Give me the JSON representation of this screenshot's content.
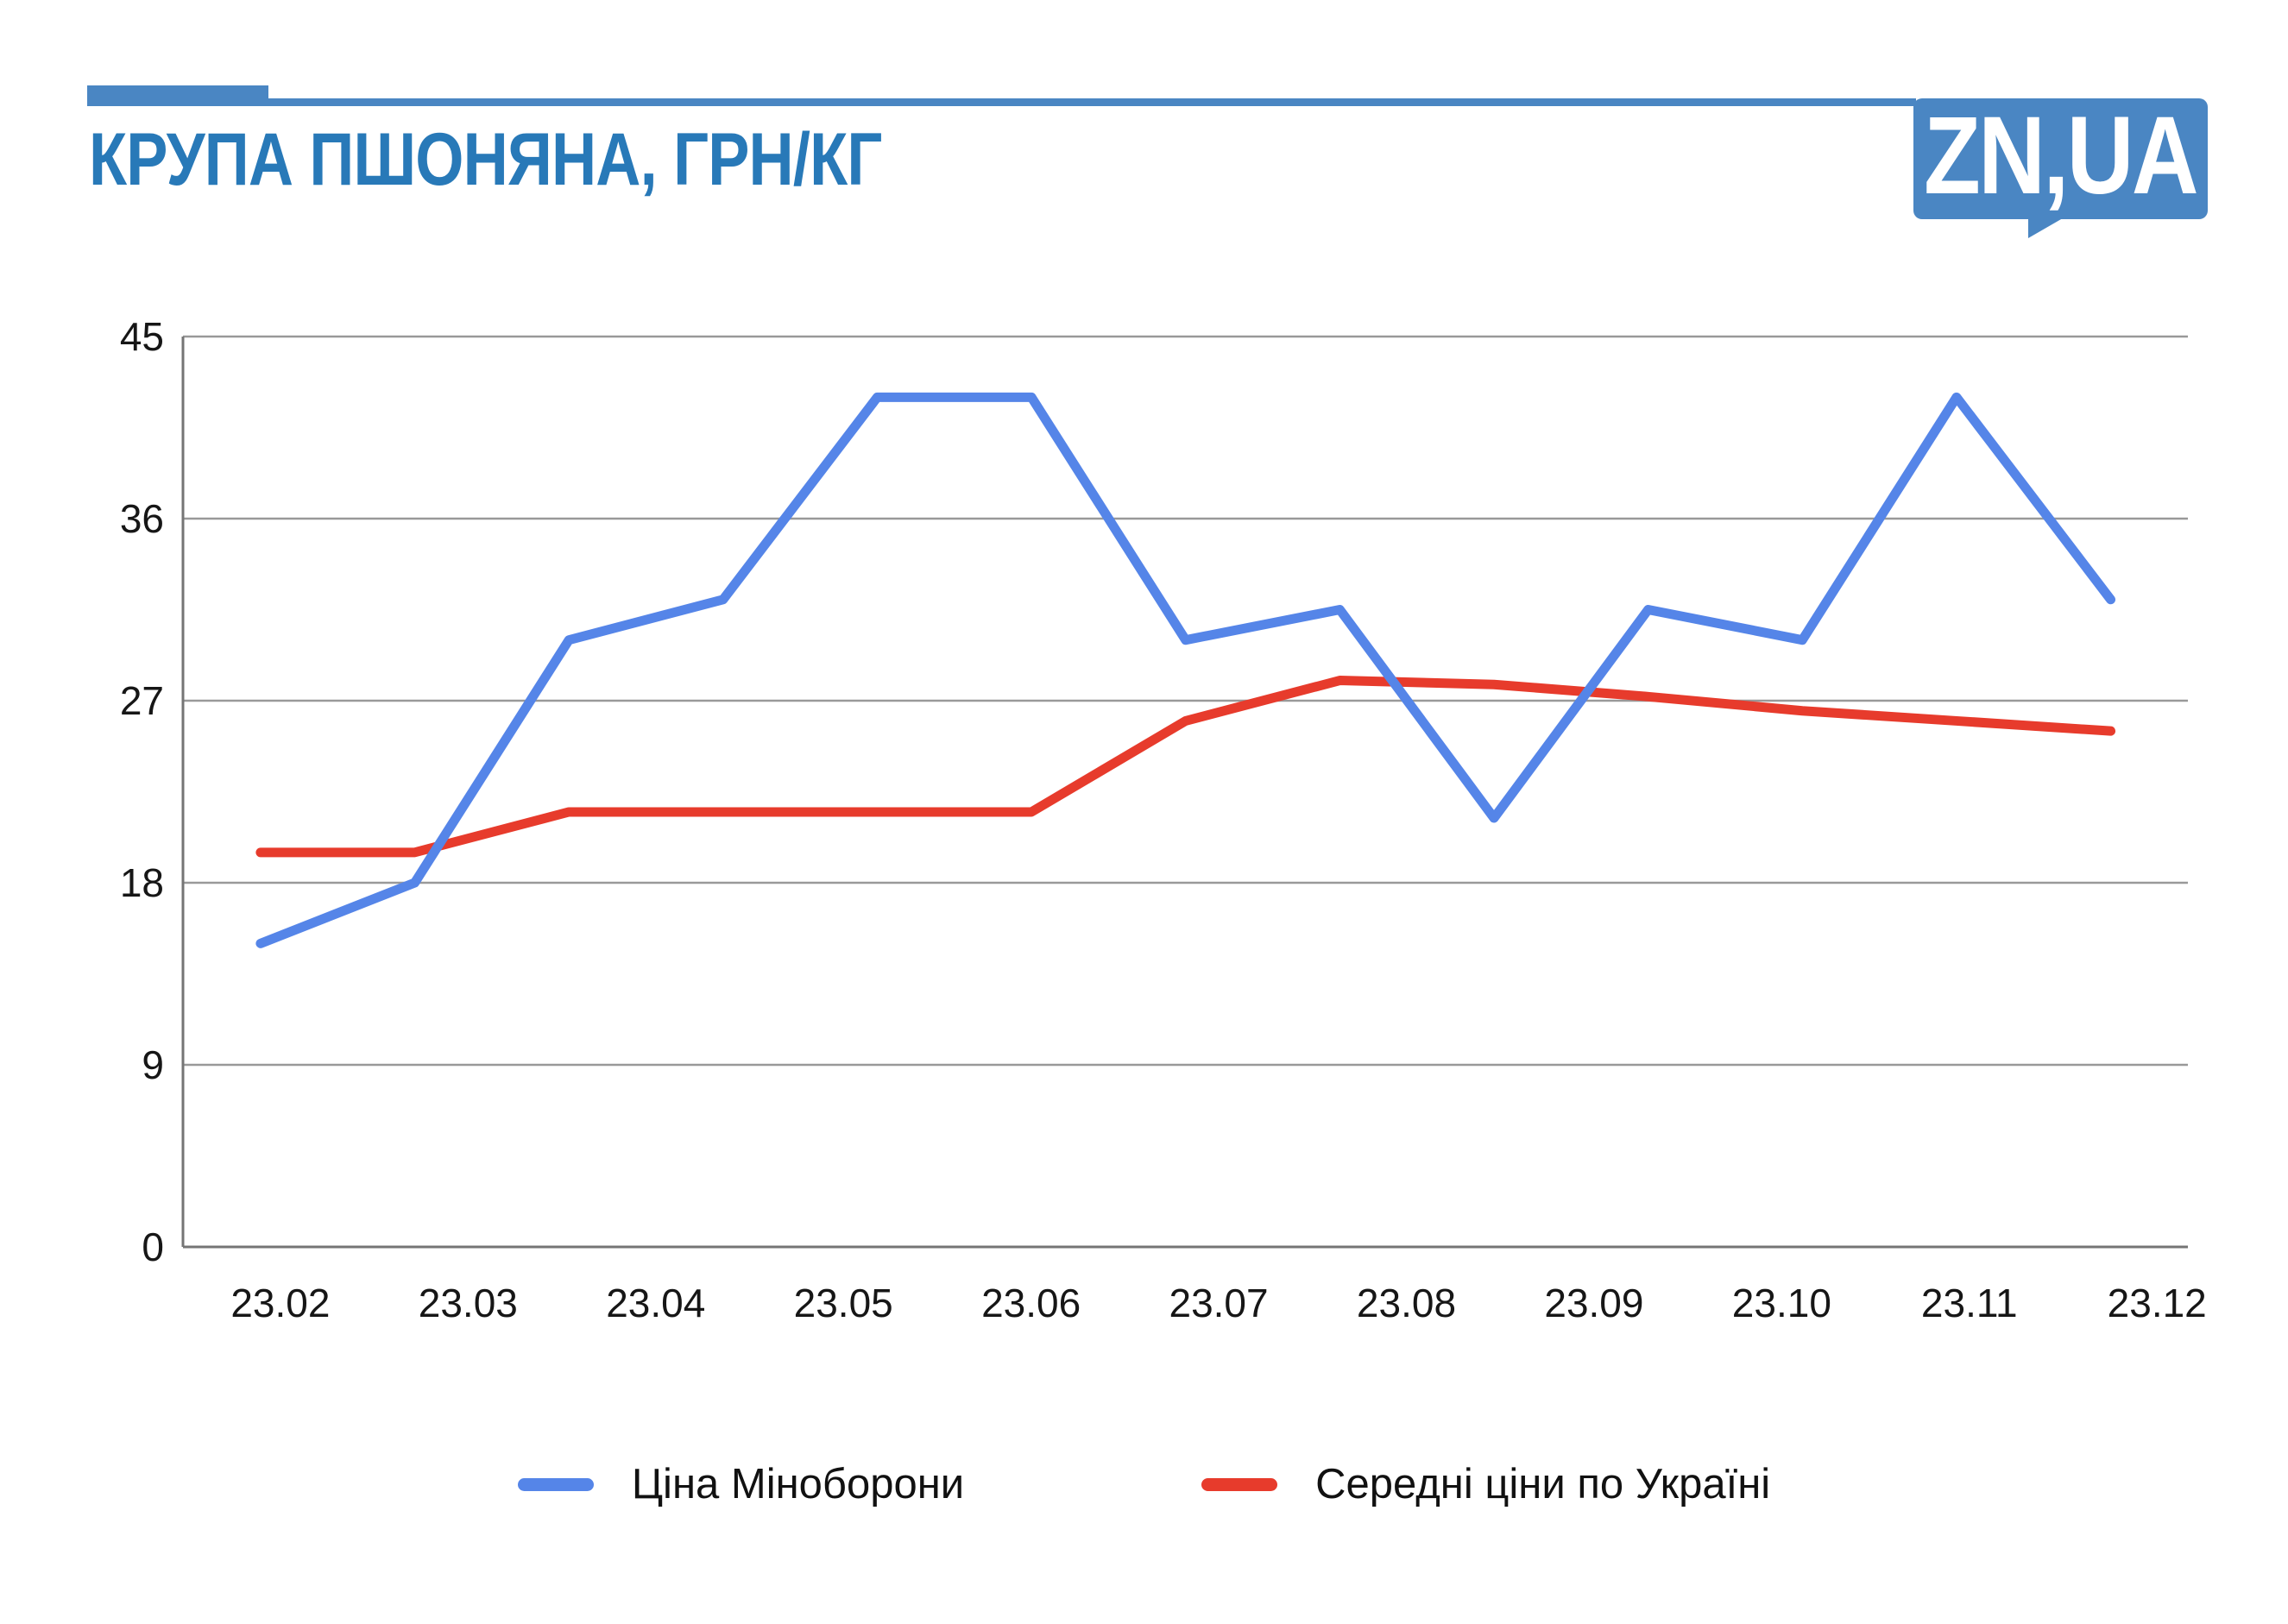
{
  "header": {
    "title": "КРУПА ПШОНЯНА, ГРН/КГ",
    "logo_text": "ZN,UA"
  },
  "colors": {
    "accent_blue": "#4a86c3",
    "title_blue": "#2879b8",
    "line_blue": "#5585e8",
    "line_red": "#e73b2c",
    "gridline": "#999999",
    "axis_line": "#757575",
    "tick_text": "#161616"
  },
  "chart_data": {
    "type": "line",
    "title": "КРУПА ПШОНЯНА, ГРН/КГ",
    "ylabel": "грн/кг",
    "ylim": [
      0,
      45
    ],
    "y_ticks": [
      0,
      9,
      18,
      27,
      36,
      45
    ],
    "x_tick_labels": [
      "23.02",
      "23.03",
      "23.04",
      "23.05",
      "23.06",
      "23.07",
      "23.08",
      "23.09",
      "23.10",
      "23.11",
      "23.12"
    ],
    "x_axis_note": "13 evenly spaced data points across the axis; axis labeled monthly from 23.02 to 23.12",
    "grid": "horizontal",
    "legend_position": "bottom",
    "series": [
      {
        "name": "Ціна Міноборони",
        "color": "#5585e8",
        "values": [
          15,
          18,
          30,
          32,
          42,
          42,
          30,
          31.5,
          21.2,
          31.5,
          30,
          42,
          32
        ]
      },
      {
        "name": "Середні ціни по Україні",
        "color": "#e73b2c",
        "values": [
          19.5,
          19.5,
          21.5,
          21.5,
          21.5,
          21.5,
          26,
          28,
          27.8,
          27.2,
          26.5,
          26,
          25.5
        ]
      }
    ]
  }
}
